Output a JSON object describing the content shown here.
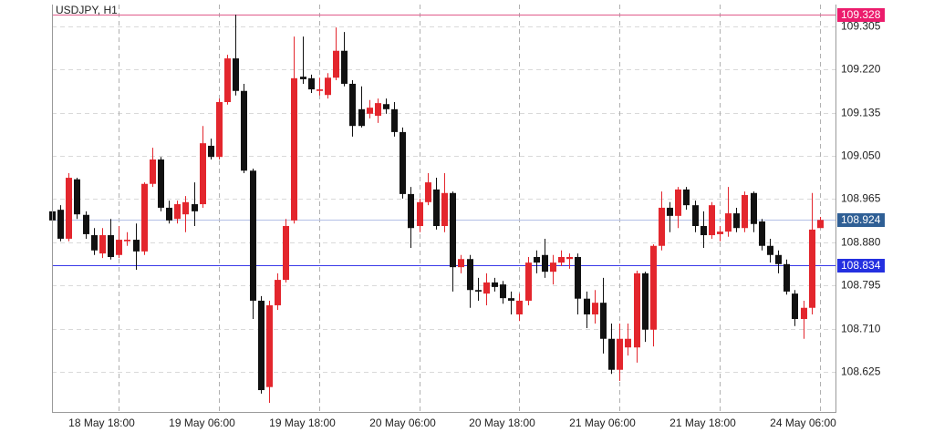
{
  "chart_data": {
    "type": "candlestick",
    "title": "USDJPY, H1",
    "up_color": "#e3262d",
    "down_color": "#111111",
    "grid": true,
    "categories": [
      null,
      null,
      null,
      null,
      null,
      null,
      null,
      null,
      "18 May 18:00",
      null,
      null,
      null,
      null,
      null,
      null,
      null,
      null,
      null,
      null,
      null,
      "19 May 06:00",
      null,
      null,
      null,
      null,
      null,
      null,
      null,
      null,
      null,
      null,
      null,
      "19 May 18:00",
      null,
      null,
      null,
      null,
      null,
      null,
      null,
      null,
      null,
      null,
      null,
      "20 May 06:00",
      null,
      null,
      null,
      null,
      null,
      null,
      null,
      null,
      null,
      null,
      null,
      "20 May 18:00",
      null,
      null,
      null,
      null,
      null,
      null,
      null,
      null,
      null,
      null,
      null,
      "21 May 06:00",
      null,
      null,
      null,
      null,
      null,
      null,
      null,
      null,
      null,
      null,
      null,
      "21 May 18:00",
      null,
      null,
      null,
      null,
      null,
      null,
      null,
      null,
      null,
      null,
      null,
      "24 May 06:00"
    ],
    "open": [
      108.941,
      108.944,
      108.887,
      109.004,
      108.934,
      108.894,
      108.858,
      108.894,
      108.855,
      108.882,
      108.885,
      108.862,
      108.995,
      109.043,
      108.948,
      108.926,
      108.935,
      108.955,
      108.955,
      109.07,
      109.048,
      109.156,
      109.242,
      109.178,
      109.021,
      108.765,
      108.595,
      108.756,
      108.806,
      108.923,
      109.206,
      109.203,
      109.178,
      109.17,
      109.204,
      109.257,
      109.192,
      109.142,
      109.133,
      109.129,
      109.152,
      109.142,
      109.097,
      108.975,
      108.912,
      108.959,
      108.984,
      108.912,
      108.977,
      108.831,
      108.847,
      108.786,
      108.779,
      108.801,
      108.797,
      108.77,
      108.738,
      108.765,
      108.851,
      108.855,
      108.822,
      108.84,
      108.847,
      108.851,
      108.769,
      108.738,
      108.761,
      108.69,
      108.629,
      108.673,
      108.673,
      108.819,
      108.708,
      108.873,
      108.948,
      108.932,
      108.984,
      108.953,
      108.912,
      108.894,
      108.896,
      108.901,
      108.937,
      108.908,
      108.977,
      108.921,
      108.873,
      108.855,
      108.837,
      108.779,
      108.729,
      108.751,
      108.908
    ],
    "high": [
      108.948,
      108.953,
      109.016,
      109.007,
      108.941,
      108.908,
      108.908,
      108.926,
      108.912,
      108.9,
      108.917,
      108.998,
      109.066,
      109.048,
      108.962,
      108.962,
      108.971,
      108.998,
      109.109,
      109.084,
      109.163,
      109.249,
      109.328,
      109.192,
      109.025,
      108.774,
      108.765,
      108.819,
      108.926,
      109.285,
      109.285,
      109.21,
      109.204,
      109.213,
      109.303,
      109.294,
      109.199,
      109.187,
      109.16,
      109.163,
      109.163,
      109.156,
      109.106,
      108.989,
      108.966,
      109.016,
      109.007,
      109.016,
      108.98,
      108.855,
      108.855,
      108.81,
      108.819,
      108.81,
      108.804,
      108.783,
      108.779,
      108.851,
      108.864,
      108.887,
      108.855,
      108.864,
      108.858,
      108.858,
      108.783,
      108.786,
      108.81,
      108.72,
      108.72,
      108.72,
      108.824,
      108.822,
      108.876,
      108.98,
      108.959,
      108.989,
      108.989,
      108.962,
      108.941,
      108.959,
      108.912,
      108.989,
      108.948,
      108.98,
      108.98,
      108.926,
      108.887,
      108.864,
      108.846,
      108.786,
      108.765,
      108.977,
      108.93
    ],
    "low": [
      108.917,
      108.882,
      108.882,
      108.926,
      108.887,
      108.855,
      108.849,
      108.846,
      108.849,
      108.873,
      108.826,
      108.855,
      108.989,
      108.941,
      108.917,
      108.917,
      108.9,
      108.912,
      108.948,
      109.043,
      109.043,
      109.151,
      109.169,
      109.016,
      108.729,
      108.582,
      108.564,
      108.747,
      108.801,
      108.917,
      109.192,
      109.174,
      109.169,
      109.163,
      109.199,
      109.187,
      109.088,
      109.106,
      109.124,
      109.115,
      109.133,
      109.088,
      108.966,
      108.869,
      108.9,
      108.953,
      108.905,
      108.9,
      108.783,
      108.819,
      108.751,
      108.765,
      108.756,
      108.783,
      108.759,
      108.738,
      108.725,
      108.756,
      108.819,
      108.81,
      108.797,
      108.833,
      108.828,
      108.738,
      108.711,
      108.72,
      108.661,
      108.621,
      108.607,
      108.657,
      108.643,
      108.684,
      108.675,
      108.864,
      108.9,
      108.908,
      108.944,
      108.9,
      108.869,
      108.887,
      108.882,
      108.891,
      108.9,
      108.9,
      108.9,
      108.864,
      108.84,
      108.819,
      108.777,
      108.715,
      108.69,
      108.738,
      108.908
    ],
    "close": [
      108.923,
      108.887,
      109.007,
      108.935,
      108.896,
      108.864,
      108.894,
      108.851,
      108.885,
      108.885,
      108.862,
      108.995,
      109.043,
      108.948,
      108.923,
      108.955,
      108.959,
      108.941,
      109.075,
      109.048,
      109.156,
      109.242,
      109.178,
      109.021,
      108.765,
      108.589,
      108.756,
      108.806,
      108.912,
      109.203,
      109.201,
      109.181,
      109.181,
      109.204,
      109.257,
      109.192,
      109.109,
      109.109,
      109.145,
      109.154,
      109.142,
      109.097,
      108.975,
      108.908,
      108.959,
      108.998,
      108.912,
      108.977,
      108.831,
      108.847,
      108.786,
      108.783,
      108.801,
      108.792,
      108.77,
      108.765,
      108.765,
      108.84,
      108.84,
      108.822,
      108.84,
      108.851,
      108.851,
      108.769,
      108.738,
      108.761,
      108.69,
      108.629,
      108.69,
      108.69,
      108.819,
      108.708,
      108.873,
      108.948,
      108.932,
      108.984,
      108.953,
      108.912,
      108.894,
      108.953,
      108.901,
      108.937,
      108.908,
      108.973,
      108.916,
      108.873,
      108.855,
      108.837,
      108.783,
      108.729,
      108.751,
      108.905,
      108.924
    ],
    "ylim": [
      108.546,
      109.348
    ],
    "yticks": [
      109.305,
      {
        "value": 109.22,
        "label": "109.220"
      },
      109.135,
      {
        "value": 109.05,
        "label": "109.050"
      },
      108.965,
      {
        "value": 108.88,
        "label": "108.880"
      },
      108.795,
      {
        "value": 108.71,
        "label": "108.710"
      },
      108.625
    ],
    "price_lines": [
      {
        "value": 109.328,
        "color": "#ec1c6c",
        "line_color": "#e05a8a"
      },
      {
        "value": 108.924,
        "color": "#2f5f95",
        "line_color": "#b4c0e6"
      },
      {
        "value": 108.834,
        "color": "#2430e0",
        "line_color": "#3a3ae8"
      }
    ]
  }
}
